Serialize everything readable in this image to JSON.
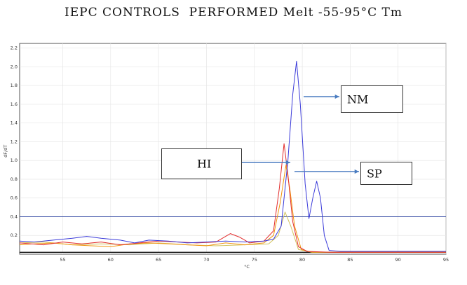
{
  "chart_data": {
    "type": "line",
    "title": "IEPC CONTROLS  PERFORMED Melt -55-95°C Tm",
    "xlabel": "°C",
    "ylabel": "dF/dT",
    "xlim": [
      50.5,
      95
    ],
    "ylim": [
      0,
      2.25
    ],
    "x_ticks": [
      "55",
      "60",
      "65",
      "70",
      "75",
      "80",
      "85",
      "90",
      "95"
    ],
    "y_ticks": [
      "0.2",
      "0.4",
      "0.6",
      "0.8",
      "1.0",
      "1.2",
      "1.4",
      "1.6",
      "1.8",
      "2.0",
      "2.2"
    ],
    "threshold": {
      "y": 0.4,
      "color": "#3f53a8"
    },
    "grid": true,
    "series": [
      {
        "name": "NM",
        "color": "#3a3ad9",
        "points": [
          [
            50.5,
            0.14
          ],
          [
            52,
            0.13
          ],
          [
            54,
            0.15
          ],
          [
            56,
            0.17
          ],
          [
            57.5,
            0.19
          ],
          [
            59,
            0.17
          ],
          [
            61,
            0.15
          ],
          [
            62.5,
            0.12
          ],
          [
            64,
            0.15
          ],
          [
            66,
            0.14
          ],
          [
            68,
            0.12
          ],
          [
            70,
            0.13
          ],
          [
            72,
            0.14
          ],
          [
            74,
            0.13
          ],
          [
            76,
            0.14
          ],
          [
            77,
            0.16
          ],
          [
            77.8,
            0.3
          ],
          [
            78.5,
            1.0
          ],
          [
            79,
            1.7
          ],
          [
            79.4,
            2.06
          ],
          [
            79.8,
            1.6
          ],
          [
            80.3,
            0.75
          ],
          [
            80.7,
            0.38
          ],
          [
            81.1,
            0.6
          ],
          [
            81.5,
            0.78
          ],
          [
            81.9,
            0.6
          ],
          [
            82.3,
            0.2
          ],
          [
            82.8,
            0.04
          ],
          [
            84,
            0.03
          ],
          [
            88,
            0.03
          ],
          [
            92,
            0.03
          ],
          [
            95,
            0.03
          ]
        ]
      },
      {
        "name": "HI",
        "color": "#e22d2d",
        "points": [
          [
            50.5,
            0.12
          ],
          [
            53,
            0.1
          ],
          [
            55,
            0.13
          ],
          [
            57,
            0.11
          ],
          [
            59,
            0.13
          ],
          [
            61,
            0.1
          ],
          [
            63,
            0.12
          ],
          [
            65,
            0.14
          ],
          [
            67,
            0.13
          ],
          [
            69,
            0.12
          ],
          [
            71,
            0.13
          ],
          [
            72.5,
            0.22
          ],
          [
            73.5,
            0.18
          ],
          [
            74.5,
            0.12
          ],
          [
            76,
            0.14
          ],
          [
            77,
            0.25
          ],
          [
            77.6,
            0.7
          ],
          [
            78.1,
            1.18
          ],
          [
            78.5,
            0.85
          ],
          [
            79,
            0.35
          ],
          [
            79.6,
            0.08
          ],
          [
            80.5,
            0.03
          ],
          [
            83,
            0.02
          ],
          [
            88,
            0.02
          ],
          [
            95,
            0.02
          ]
        ]
      },
      {
        "name": "SP",
        "color": "#f0940d",
        "points": [
          [
            50.5,
            0.1
          ],
          [
            52,
            0.11
          ],
          [
            54,
            0.12
          ],
          [
            56,
            0.1
          ],
          [
            58,
            0.09
          ],
          [
            60,
            0.08
          ],
          [
            62,
            0.11
          ],
          [
            64,
            0.12
          ],
          [
            66,
            0.11
          ],
          [
            68,
            0.1
          ],
          [
            70,
            0.09
          ],
          [
            72,
            0.12
          ],
          [
            74,
            0.1
          ],
          [
            76,
            0.12
          ],
          [
            77,
            0.2
          ],
          [
            77.7,
            0.55
          ],
          [
            78.3,
            0.95
          ],
          [
            78.7,
            0.7
          ],
          [
            79.2,
            0.3
          ],
          [
            79.9,
            0.05
          ],
          [
            81,
            0.02
          ],
          [
            85,
            0.02
          ],
          [
            95,
            0.02
          ]
        ]
      },
      {
        "name": "",
        "color": "#d2c25c",
        "points": [
          [
            50.5,
            0.12
          ],
          [
            53,
            0.13
          ],
          [
            56,
            0.1
          ],
          [
            59,
            0.11
          ],
          [
            62,
            0.1
          ],
          [
            65,
            0.12
          ],
          [
            68,
            0.1
          ],
          [
            71,
            0.09
          ],
          [
            74,
            0.1
          ],
          [
            76.5,
            0.11
          ],
          [
            77.5,
            0.2
          ],
          [
            78.2,
            0.45
          ],
          [
            78.8,
            0.3
          ],
          [
            79.6,
            0.05
          ],
          [
            81,
            0.02
          ],
          [
            95,
            0.02
          ]
        ]
      }
    ],
    "annotations": [
      {
        "label": "NM"
      },
      {
        "label": "HI"
      },
      {
        "label": "SP"
      }
    ]
  }
}
